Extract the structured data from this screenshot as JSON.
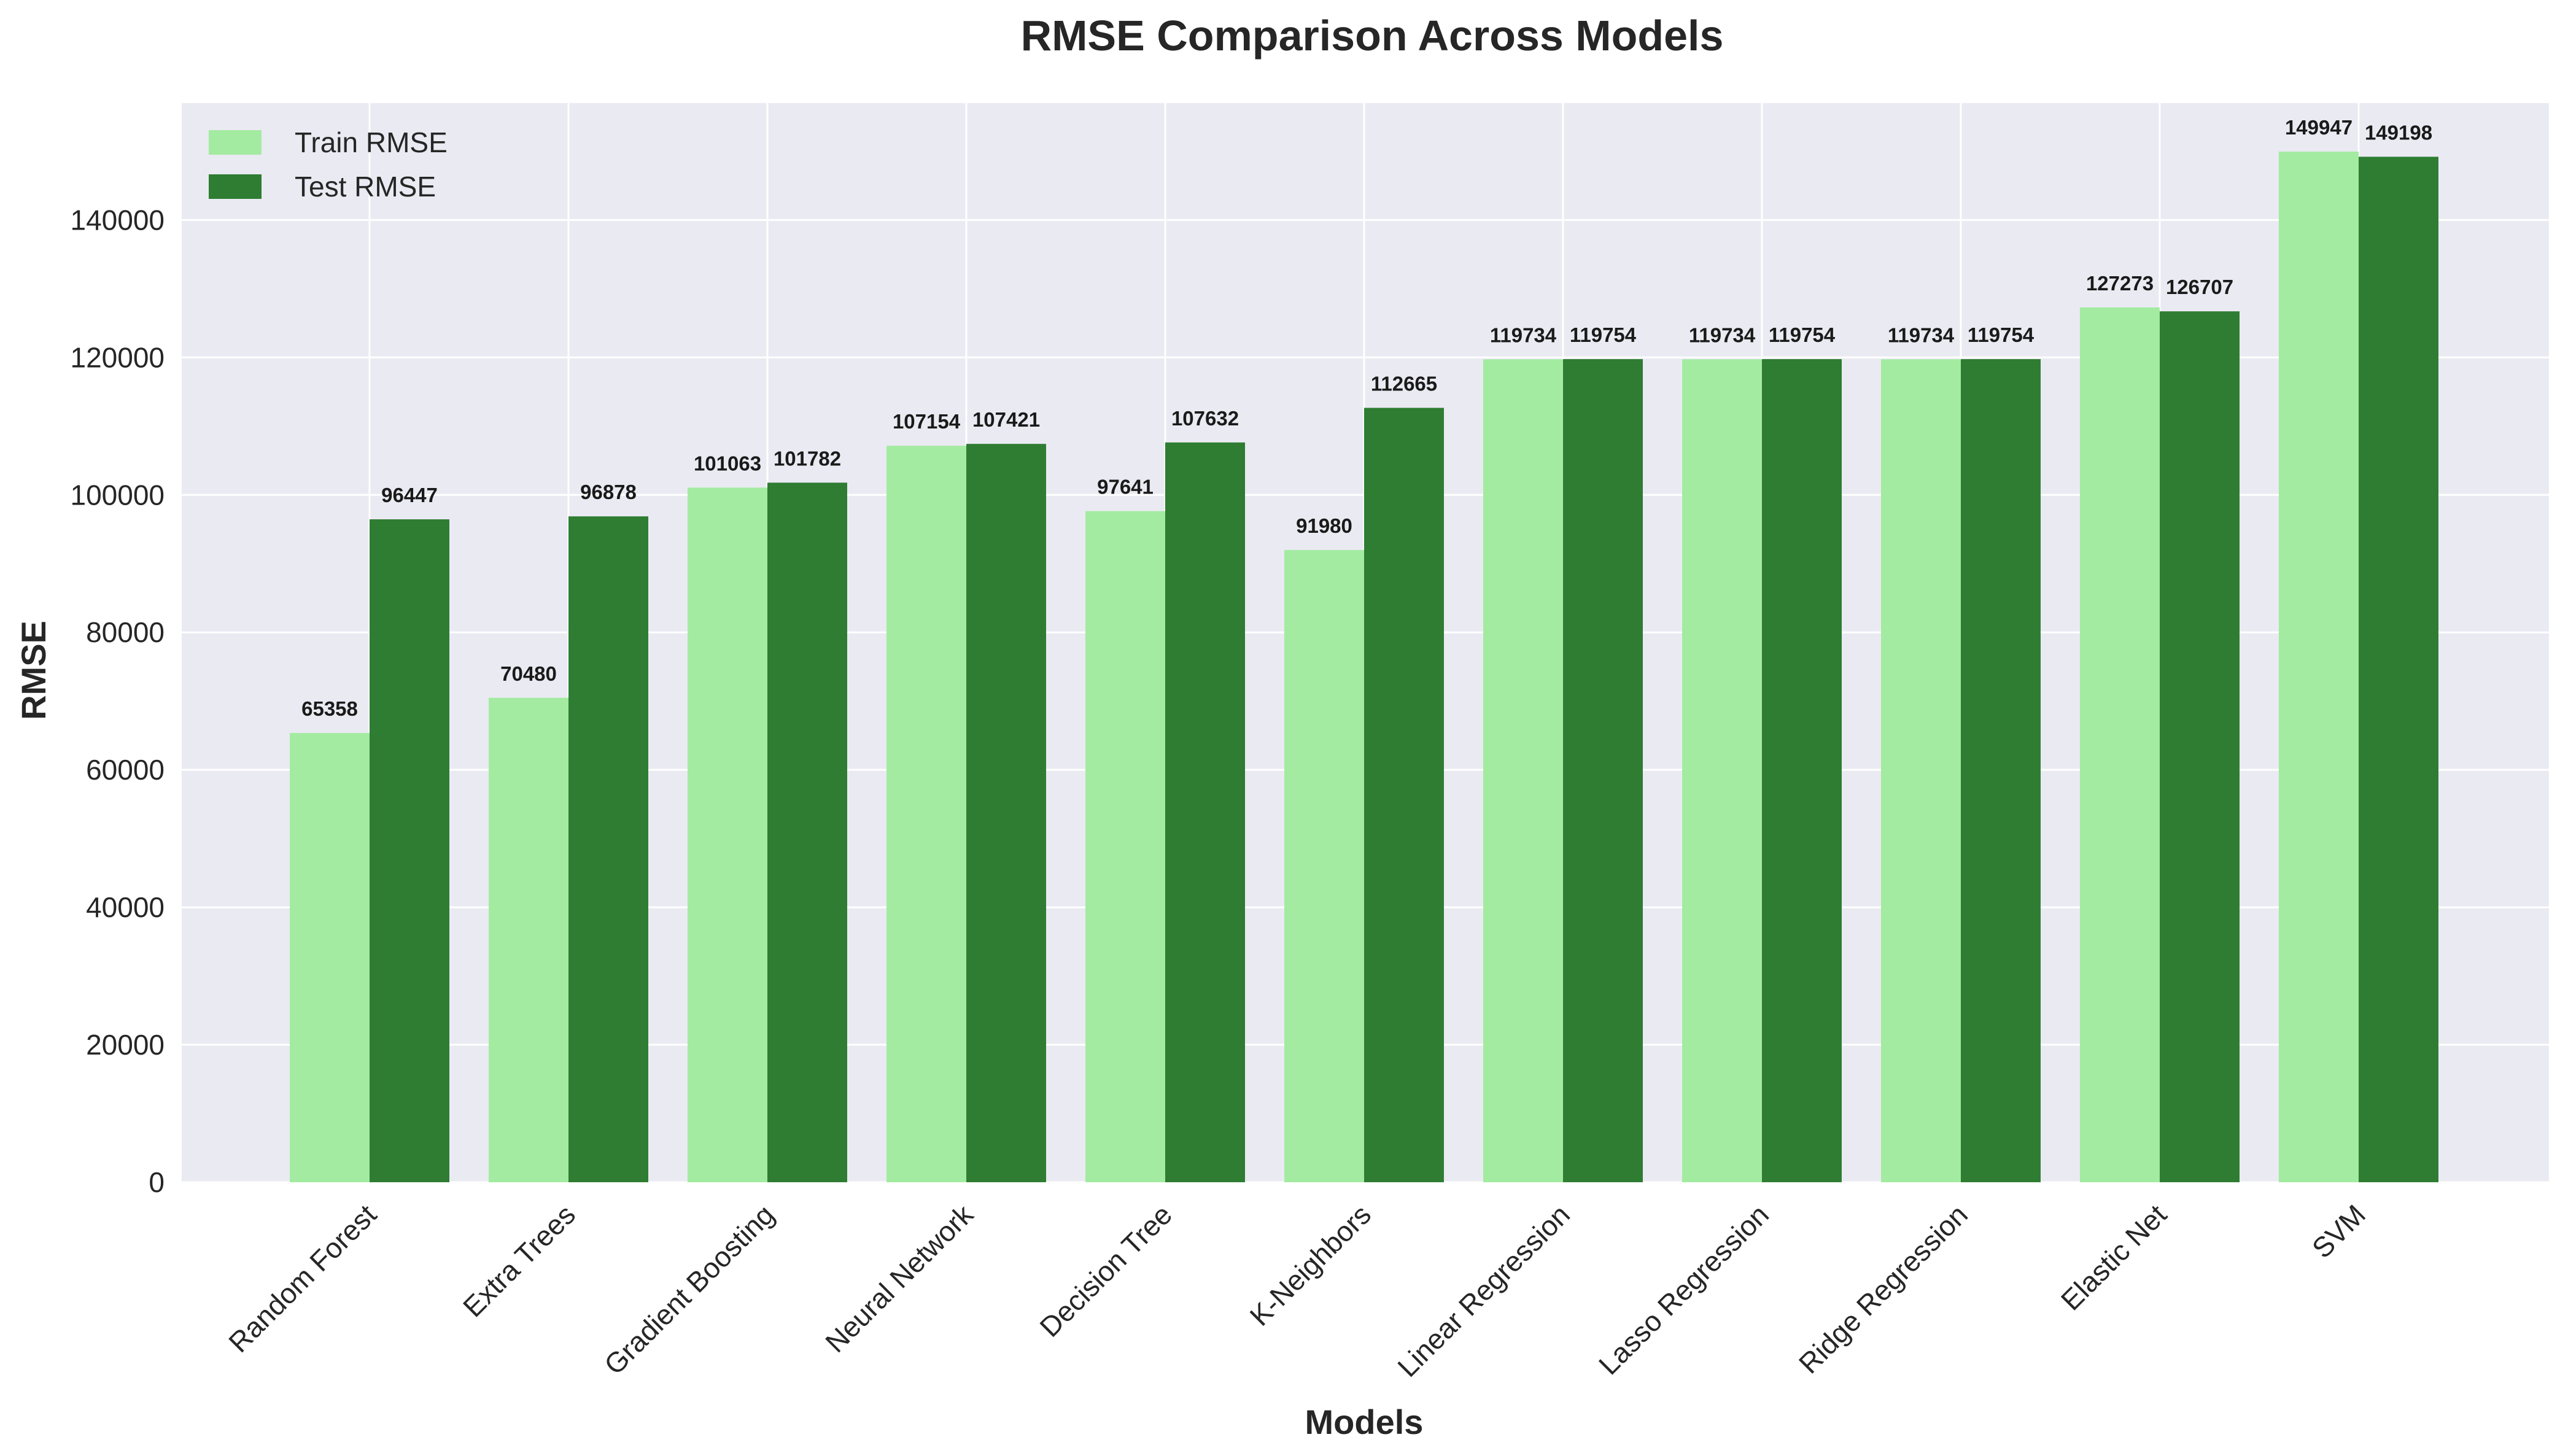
{
  "chart_data": {
    "type": "bar",
    "title": "RMSE Comparison Across Models",
    "xlabel": "Models",
    "ylabel": "RMSE",
    "ylim": [
      0,
      157000
    ],
    "yticks": [
      0,
      20000,
      40000,
      60000,
      80000,
      100000,
      120000,
      140000
    ],
    "grid": true,
    "legend_position": "top-left",
    "categories": [
      "Random Forest",
      "Extra Trees",
      "Gradient Boosting",
      "Neural Network",
      "Decision Tree",
      "K-Neighbors",
      "Linear Regression",
      "Lasso Regression",
      "Ridge Regression",
      "Elastic Net",
      "SVM"
    ],
    "series": [
      {
        "name": "Train RMSE",
        "color": "#a3eba1",
        "values": [
          65358,
          70480,
          101063,
          107154,
          97641,
          91980,
          119734,
          119734,
          119734,
          127273,
          149947
        ]
      },
      {
        "name": "Test RMSE",
        "color": "#2e7d32",
        "values": [
          96447,
          96878,
          101782,
          107421,
          107632,
          112665,
          119754,
          119754,
          119754,
          126707,
          149198
        ]
      }
    ],
    "colors": {
      "plot_background": "#eaeaf2",
      "grid": "#ffffff",
      "text": "#262626"
    }
  }
}
